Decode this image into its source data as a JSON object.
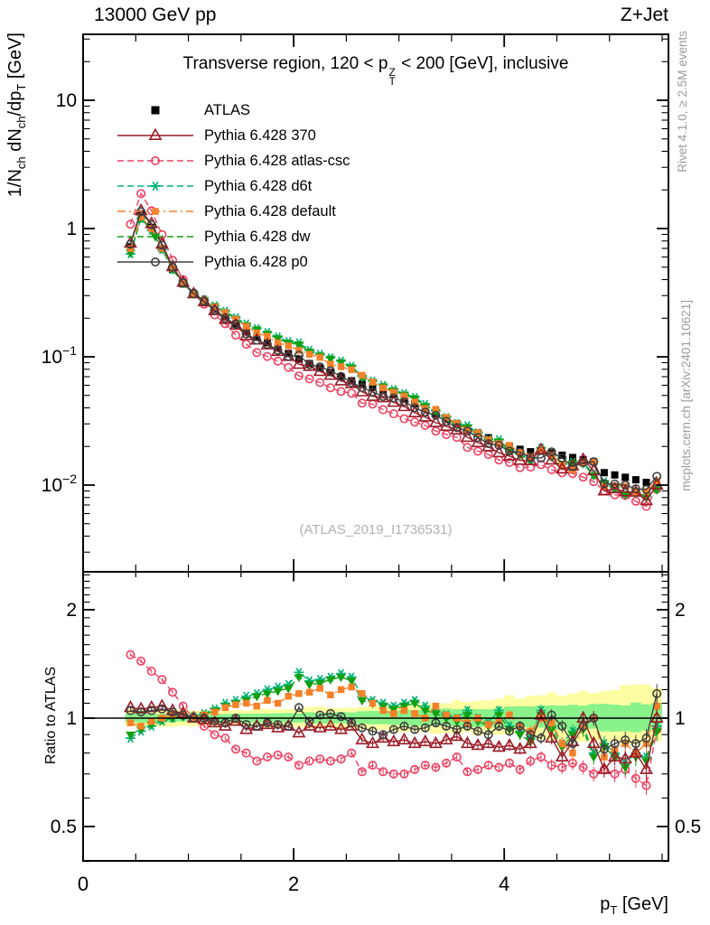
{
  "header": {
    "left": "13000 GeV pp",
    "right": "Z+Jet"
  },
  "panel_title": {
    "p1": "Transverse region, 120 < p",
    "sup": "Z",
    "sub": "T",
    "p2": " < 200 [GeV], inclusive"
  },
  "watermark": "(ATLAS_2019_I1736531)",
  "side_notes": {
    "right_top": "Rivet 4.1.0, ≥ 2.5M events",
    "right_bottom": "mcplots.cern.ch [arXiv:2401.10621]"
  },
  "axis_labels": {
    "y_main": {
      "p1": "1/N",
      "s1": "ch",
      "p2": " dN",
      "s2": "ch",
      "p3": "/dp",
      "s3": "T",
      "p4": " [GeV]"
    },
    "y_ratio": "Ratio to ATLAS",
    "x": {
      "p1": "p",
      "s1": "T",
      "p2": " [GeV]"
    }
  },
  "legend": [
    {
      "id": "atlas",
      "label": "ATLAS",
      "marker": "square",
      "color": "#000000",
      "line": "none"
    },
    {
      "id": "p370",
      "label": "Pythia 6.428 370",
      "marker": "triangle-open",
      "color": "#9a1b26",
      "line": "solid"
    },
    {
      "id": "atlas-csc",
      "label": "Pythia 6.428 atlas-csc",
      "marker": "circle-open",
      "color": "#ef4060",
      "line": "dashed"
    },
    {
      "id": "d6t",
      "label": "Pythia 6.428 d6t",
      "marker": "star",
      "color": "#00b376",
      "line": "dashed"
    },
    {
      "id": "default",
      "label": "Pythia 6.428 default",
      "marker": "square",
      "color": "#f5812a",
      "line": "dashdot"
    },
    {
      "id": "dw",
      "label": "Pythia 6.428 dw",
      "marker": "triangle-down",
      "color": "#12a012",
      "line": "dashed"
    },
    {
      "id": "p0",
      "label": "Pythia 6.428 p0",
      "marker": "circle-open",
      "color": "#3f3f3f",
      "line": "solid"
    }
  ],
  "chart_data": {
    "type": "line",
    "title": "Transverse region, 120 < pT(Z) < 200 [GeV], inclusive",
    "xlabel": "pT [GeV]",
    "ylabel": "1/Nch dNch/dpT [GeV]",
    "ratio_label": "Ratio to ATLAS",
    "xlim": [
      0,
      5.56
    ],
    "ylim_main": [
      0.0021,
      32.5
    ],
    "ylim_ratio": [
      0.4,
      2.54
    ],
    "grid": false,
    "legend_position": "top-left",
    "x_ticks": {
      "major": [
        {
          "v": 0,
          "label": "0"
        },
        {
          "v": 2,
          "label": "2"
        },
        {
          "v": 4,
          "label": "4"
        }
      ],
      "minor_step": 0.5
    },
    "y_major_ticks": [
      {
        "v": 10,
        "base": "10",
        "exp": ""
      },
      {
        "v": 1,
        "base": "1",
        "exp": ""
      },
      {
        "v": 0.1,
        "base": "10",
        "exp": "−1"
      },
      {
        "v": 0.01,
        "base": "10",
        "exp": "−2"
      }
    ],
    "ratio_ticks": [
      {
        "v": 2,
        "label": "2"
      },
      {
        "v": 1,
        "label": "1"
      },
      {
        "v": 0.5,
        "label": "0.5"
      }
    ],
    "x": [
      0.45,
      0.55,
      0.65,
      0.75,
      0.85,
      0.95,
      1.05,
      1.15,
      1.25,
      1.35,
      1.45,
      1.55,
      1.65,
      1.75,
      1.85,
      1.95,
      2.05,
      2.15,
      2.25,
      2.35,
      2.45,
      2.55,
      2.65,
      2.75,
      2.85,
      2.95,
      3.05,
      3.15,
      3.25,
      3.35,
      3.45,
      3.55,
      3.65,
      3.75,
      3.85,
      3.95,
      4.05,
      4.15,
      4.25,
      4.35,
      4.45,
      4.55,
      4.65,
      4.75,
      4.85,
      4.95,
      5.05,
      5.15,
      5.25,
      5.35,
      5.45
    ],
    "atlas": {
      "name": "ATLAS",
      "values": [
        0.72,
        1.3,
        1.02,
        0.7,
        0.48,
        0.37,
        0.31,
        0.271,
        0.236,
        0.206,
        0.18,
        0.157,
        0.142,
        0.129,
        0.117,
        0.106,
        0.096,
        0.0886,
        0.0818,
        0.0755,
        0.0697,
        0.065,
        0.0613,
        0.0578,
        0.0545,
        0.0514,
        0.047,
        0.0431,
        0.0394,
        0.0361,
        0.033,
        0.0302,
        0.0277,
        0.0255,
        0.0234,
        0.0215,
        0.02,
        0.019,
        0.0182,
        0.0185,
        0.0178,
        0.0171,
        0.0164,
        0.0158,
        0.0152,
        0.0125,
        0.012,
        0.0115,
        0.011,
        0.0105,
        0.01
      ]
    },
    "series": [
      {
        "id": "atlas-csc",
        "name": "Pythia 6.428 atlas-csc",
        "color": "#ef4060",
        "dash": "dashed",
        "marker": "circle-open",
        "ratio": [
          1.5,
          1.44,
          1.35,
          1.28,
          1.18,
          1.08,
          1.0,
          0.95,
          0.9,
          0.88,
          0.82,
          0.8,
          0.76,
          0.78,
          0.79,
          0.78,
          0.74,
          0.76,
          0.77,
          0.76,
          0.77,
          0.8,
          0.71,
          0.74,
          0.71,
          0.7,
          0.7,
          0.72,
          0.74,
          0.73,
          0.75,
          0.78,
          0.71,
          0.72,
          0.74,
          0.73,
          0.75,
          0.72,
          0.76,
          0.78,
          0.74,
          0.73,
          0.75,
          0.73,
          0.7,
          0.72,
          0.7,
          0.72,
          0.68,
          0.65,
          0.93
        ]
      },
      {
        "id": "d6t",
        "name": "Pythia 6.428 d6t",
        "color": "#00b376",
        "dash": "dashed",
        "marker": "star",
        "ratio": [
          0.88,
          0.92,
          0.95,
          0.98,
          1.0,
          1.02,
          1.01,
          1.03,
          1.06,
          1.1,
          1.12,
          1.15,
          1.17,
          1.2,
          1.22,
          1.24,
          1.34,
          1.27,
          1.28,
          1.3,
          1.33,
          1.3,
          1.15,
          1.12,
          1.1,
          1.08,
          1.1,
          1.12,
          1.08,
          1.05,
          1.02,
          1.0,
          1.05,
          1.0,
          0.97,
          1.05,
          0.95,
          0.92,
          0.88,
          1.05,
          0.95,
          0.85,
          0.92,
          0.95,
          0.8,
          0.85,
          0.8,
          0.75,
          0.8,
          0.78,
          0.95
        ]
      },
      {
        "id": "dw",
        "name": "Pythia 6.428 dw",
        "color": "#12a012",
        "dash": "dashed",
        "marker": "triangle-down",
        "ratio": [
          0.9,
          0.93,
          0.96,
          0.99,
          1.0,
          1.01,
          1.0,
          1.02,
          1.05,
          1.08,
          1.1,
          1.12,
          1.15,
          1.17,
          1.19,
          1.21,
          1.3,
          1.24,
          1.25,
          1.28,
          1.3,
          1.27,
          1.12,
          1.1,
          1.08,
          1.06,
          1.08,
          1.1,
          1.05,
          1.03,
          1.0,
          0.98,
          1.02,
          0.98,
          0.95,
          1.02,
          0.93,
          0.9,
          0.86,
          1.02,
          0.93,
          0.83,
          0.9,
          0.93,
          0.78,
          0.83,
          0.78,
          0.73,
          0.78,
          0.76,
          0.92
        ]
      },
      {
        "id": "default",
        "name": "Pythia 6.428 default",
        "color": "#f5812a",
        "dash": "dashdot",
        "marker": "square",
        "ratio": [
          0.97,
          0.95,
          0.98,
          1.0,
          1.02,
          1.02,
          1.0,
          1.02,
          1.04,
          1.07,
          1.09,
          1.1,
          1.08,
          1.12,
          1.1,
          1.15,
          1.17,
          1.18,
          1.21,
          1.16,
          1.2,
          1.22,
          1.17,
          1.1,
          1.05,
          1.03,
          1.05,
          1.03,
          1.0,
          1.08,
          1.02,
          1.0,
          0.97,
          1.0,
          0.96,
          0.98,
          1.02,
          0.95,
          0.92,
          1.0,
          0.97,
          0.85,
          0.8,
          0.95,
          1.0,
          0.78,
          0.82,
          0.85,
          0.8,
          0.85,
          1.08
        ]
      },
      {
        "id": "p370",
        "name": "Pythia 6.428 370",
        "color": "#9a1b26",
        "dash": "solid",
        "marker": "triangle-open",
        "ratio": [
          1.07,
          1.06,
          1.07,
          1.08,
          1.05,
          1.03,
          1.0,
          0.99,
          0.97,
          0.95,
          0.98,
          0.93,
          0.95,
          0.96,
          0.94,
          0.95,
          0.91,
          0.95,
          0.94,
          0.95,
          0.93,
          0.95,
          0.87,
          0.85,
          0.88,
          0.86,
          0.87,
          0.85,
          0.86,
          0.85,
          0.87,
          0.89,
          0.85,
          0.84,
          0.85,
          0.83,
          0.84,
          0.82,
          0.85,
          1.02,
          0.88,
          0.78,
          0.86,
          1.0,
          0.85,
          0.72,
          0.78,
          0.77,
          0.8,
          0.72,
          1.0
        ]
      },
      {
        "id": "p0",
        "name": "Pythia 6.428 p0",
        "color": "#3f3f3f",
        "dash": "solid",
        "marker": "circle-open",
        "ratio": [
          1.05,
          1.04,
          1.05,
          1.06,
          1.04,
          1.02,
          1.0,
          1.0,
          0.98,
          0.97,
          1.0,
          0.96,
          0.95,
          0.97,
          0.96,
          0.95,
          1.07,
          0.98,
          1.02,
          1.03,
          1.01,
          0.97,
          0.94,
          0.92,
          0.9,
          0.93,
          0.95,
          0.93,
          0.94,
          0.97,
          0.95,
          0.93,
          0.95,
          0.92,
          0.9,
          0.95,
          0.92,
          0.95,
          0.9,
          0.88,
          1.02,
          0.95,
          0.85,
          0.95,
          1.0,
          0.82,
          0.85,
          0.87,
          0.85,
          0.88,
          1.17
        ]
      }
    ],
    "bands": {
      "color_yellow": "#fdfda2",
      "color_green": "#8af28a",
      "kx": [
        0.45,
        1.0,
        1.5,
        2.0,
        2.5,
        3.0,
        3.5,
        4.0,
        4.5,
        5.0,
        5.45
      ],
      "yel_up": [
        0.055,
        0.05,
        0.052,
        0.065,
        0.075,
        0.09,
        0.11,
        0.14,
        0.17,
        0.21,
        0.24
      ],
      "yel_dn": [
        0.055,
        0.048,
        0.05,
        0.06,
        0.068,
        0.08,
        0.09,
        0.1,
        0.12,
        0.14,
        0.15
      ],
      "grn_up": [
        0.028,
        0.025,
        0.027,
        0.034,
        0.04,
        0.05,
        0.058,
        0.068,
        0.08,
        0.09,
        0.1
      ],
      "grn_dn": [
        0.028,
        0.024,
        0.026,
        0.03,
        0.036,
        0.044,
        0.05,
        0.055,
        0.065,
        0.075,
        0.08
      ]
    }
  }
}
